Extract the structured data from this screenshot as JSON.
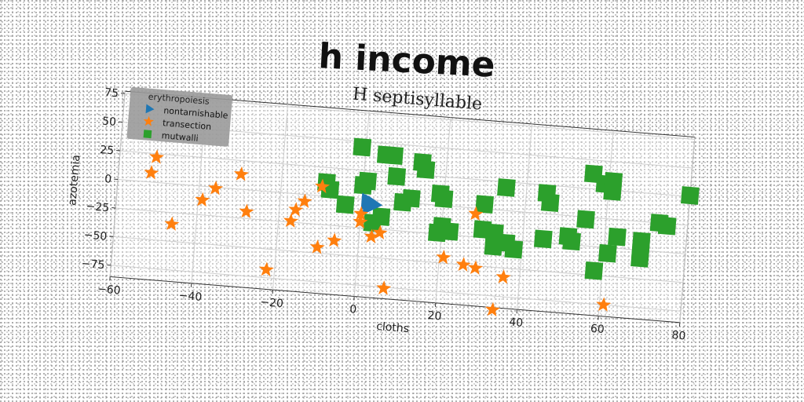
{
  "chart_data": {
    "type": "scatter",
    "title": "h income",
    "subtitle": "H septisyllable",
    "xlabel": "cloths",
    "ylabel": "azotemia",
    "xlim": [
      -60,
      80
    ],
    "ylim": [
      -85,
      77
    ],
    "xticks": [
      -60,
      -40,
      -20,
      0,
      20,
      40,
      60,
      80
    ],
    "yticks": [
      -75,
      -50,
      -25,
      0,
      25,
      50,
      75
    ],
    "grid": true,
    "legend": {
      "title": "erythropoiesis",
      "position": "top-left"
    },
    "colors": {
      "nontarnishable": "#1f77b4",
      "transection": "#ff7f0e",
      "mutwalli": "#2ca02c"
    },
    "series": [
      {
        "name": "nontarnishable",
        "marker": "triangle-right",
        "points": [
          [
            1.5,
            -2
          ],
          [
            2.3,
            -3
          ],
          [
            3.0,
            -4
          ],
          [
            2.0,
            -6
          ]
        ]
      },
      {
        "name": "transection",
        "marker": "star",
        "points": [
          [
            -51,
            22
          ],
          [
            -52,
            8
          ],
          [
            -46,
            -35
          ],
          [
            -39,
            -12
          ],
          [
            -36,
            -1
          ],
          [
            -30,
            13
          ],
          [
            -28,
            -19
          ],
          [
            -22,
            -68
          ],
          [
            -17,
            -24
          ],
          [
            -16,
            -14
          ],
          [
            -14,
            -6
          ],
          [
            -10,
            -45
          ],
          [
            -10,
            8
          ],
          [
            -6,
            -38
          ],
          [
            0,
            -20
          ],
          [
            0,
            -13
          ],
          [
            3,
            -32
          ],
          [
            5,
            -28
          ],
          [
            7,
            -76
          ],
          [
            21,
            -45
          ],
          [
            26,
            -50
          ],
          [
            28,
            -5
          ],
          [
            29,
            -52
          ],
          [
            36,
            -58
          ],
          [
            34,
            -87
          ],
          [
            61,
            -75
          ]
        ]
      },
      {
        "name": "mutwalli",
        "marker": "square",
        "points": [
          [
            -1,
            45
          ],
          [
            -9,
            12
          ],
          [
            -8,
            6
          ],
          [
            -4,
            -6
          ],
          [
            0,
            12
          ],
          [
            1,
            16
          ],
          [
            5,
            40
          ],
          [
            7,
            40
          ],
          [
            8,
            22
          ],
          [
            10,
            0
          ],
          [
            12,
            4
          ],
          [
            14,
            36
          ],
          [
            15,
            30
          ],
          [
            5,
            -14
          ],
          [
            3,
            -20
          ],
          [
            19,
            10
          ],
          [
            20,
            6
          ],
          [
            20,
            -18
          ],
          [
            19,
            -24
          ],
          [
            22,
            -22
          ],
          [
            30,
            4
          ],
          [
            30,
            -18
          ],
          [
            33,
            -20
          ],
          [
            33,
            -32
          ],
          [
            35,
            20
          ],
          [
            36,
            -28
          ],
          [
            38,
            -33
          ],
          [
            45,
            18
          ],
          [
            46,
            10
          ],
          [
            45,
            -22
          ],
          [
            51,
            -18
          ],
          [
            52,
            -22
          ],
          [
            55,
            -2
          ],
          [
            56,
            38
          ],
          [
            59,
            30
          ],
          [
            61,
            33
          ],
          [
            61,
            24
          ],
          [
            58,
            -46
          ],
          [
            61,
            -30
          ],
          [
            63,
            -15
          ],
          [
            69,
            -17
          ],
          [
            69,
            -26
          ],
          [
            69,
            -32
          ],
          [
            73,
            0
          ],
          [
            75,
            -2
          ],
          [
            80,
            26
          ]
        ]
      }
    ]
  }
}
